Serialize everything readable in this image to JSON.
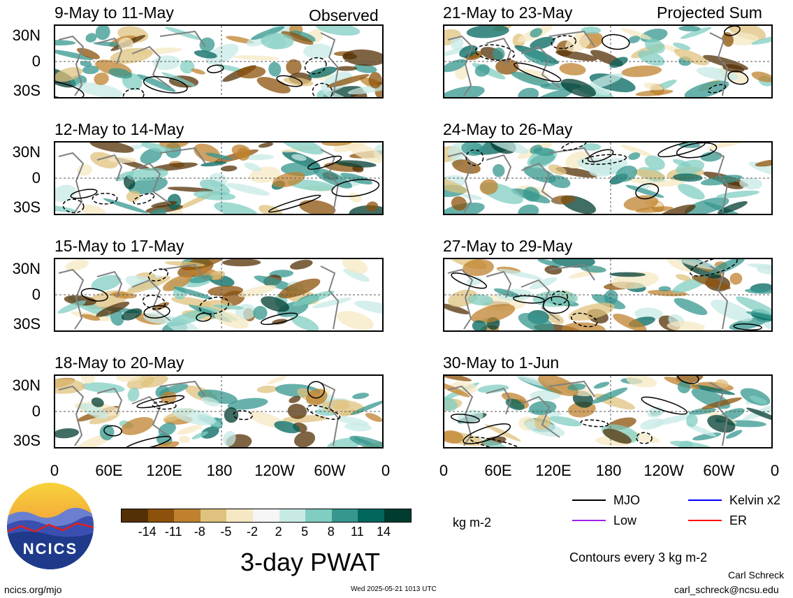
{
  "panels_left": [
    {
      "title": "9-May to 11-May"
    },
    {
      "title": "12-May to 14-May"
    },
    {
      "title": "15-May to 17-May"
    },
    {
      "title": "18-May to 20-May"
    }
  ],
  "panels_right": [
    {
      "title": "21-May to 23-May"
    },
    {
      "title": "24-May to 26-May"
    },
    {
      "title": "27-May to 29-May"
    },
    {
      "title": "30-May to 1-Jun"
    }
  ],
  "tags": {
    "observed": "Observed",
    "projected": "Projected Sum"
  },
  "lat_labels": [
    "30N",
    "0",
    "30S"
  ],
  "lon_labels": [
    "0",
    "60E",
    "120E",
    "180",
    "120W",
    "60W",
    "0"
  ],
  "colorbar": {
    "colors": [
      "#543005",
      "#8c510a",
      "#bf812d",
      "#dfc27d",
      "#f6e8c3",
      "#f5f5f5",
      "#c7eae5",
      "#80cdc1",
      "#35978f",
      "#01665e",
      "#003c30"
    ],
    "labels": [
      "-14",
      "-11",
      "-8",
      "-5",
      "-2",
      "2",
      "5",
      "8",
      "11",
      "14"
    ],
    "units": "kg m-2"
  },
  "product_title": "3-day PWAT",
  "legend": {
    "items": [
      {
        "label": "MJO",
        "color": "#000000"
      },
      {
        "label": "Kelvin x2",
        "color": "#0000ff"
      },
      {
        "label": "Low",
        "color": "#a020f0"
      },
      {
        "label": "ER",
        "color": "#ff0000"
      }
    ],
    "contours_note": "Contours every 3 kg m-2"
  },
  "footer": {
    "site": "ncics.org/mjo",
    "timestamp": "Wed 2025-05-21 1013 UTC",
    "author": "Carl Schreck",
    "email": "carl_schreck@ncsu.edu"
  },
  "logo": {
    "text": "NCICS"
  }
}
